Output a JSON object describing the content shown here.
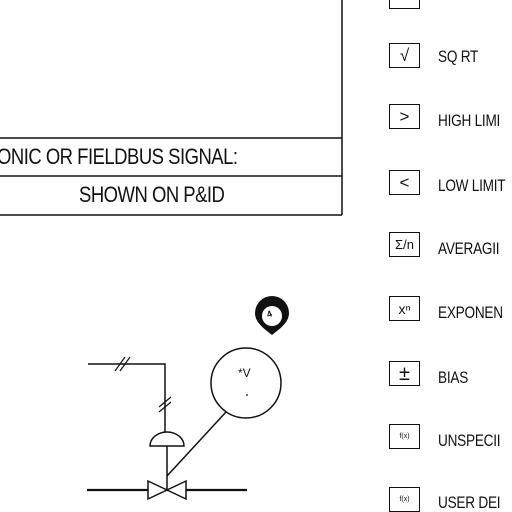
{
  "signal_header": {
    "line1": "ONIC OR FIELDBUS SIGNAL:",
    "line2": "SHOWN ON P&ID"
  },
  "instrument": {
    "bubble_label": "*V",
    "marker_label": "4"
  },
  "legend": [
    {
      "icon": "box-top-partial-icon",
      "glyph": "",
      "label": ""
    },
    {
      "icon": "square-root-icon",
      "glyph": "√",
      "label": "SQ RT"
    },
    {
      "icon": "high-limit-icon",
      "glyph": ">",
      "label": "HIGH LIMI"
    },
    {
      "icon": "low-limit-icon",
      "glyph": "<",
      "label": "LOW LIMIT"
    },
    {
      "icon": "averaging-icon",
      "glyph": "Σ/n",
      "label": "AVERAGII"
    },
    {
      "icon": "exponent-icon",
      "glyph": "xⁿ",
      "label": "EXPONEN"
    },
    {
      "icon": "bias-icon",
      "glyph": "±",
      "label": "BIAS"
    },
    {
      "icon": "unspecified-function-icon",
      "glyph": "f(x)",
      "label": "UNSPECII"
    },
    {
      "icon": "user-defined-function-icon",
      "glyph": "f(x)",
      "label": "USER DEI"
    }
  ]
}
